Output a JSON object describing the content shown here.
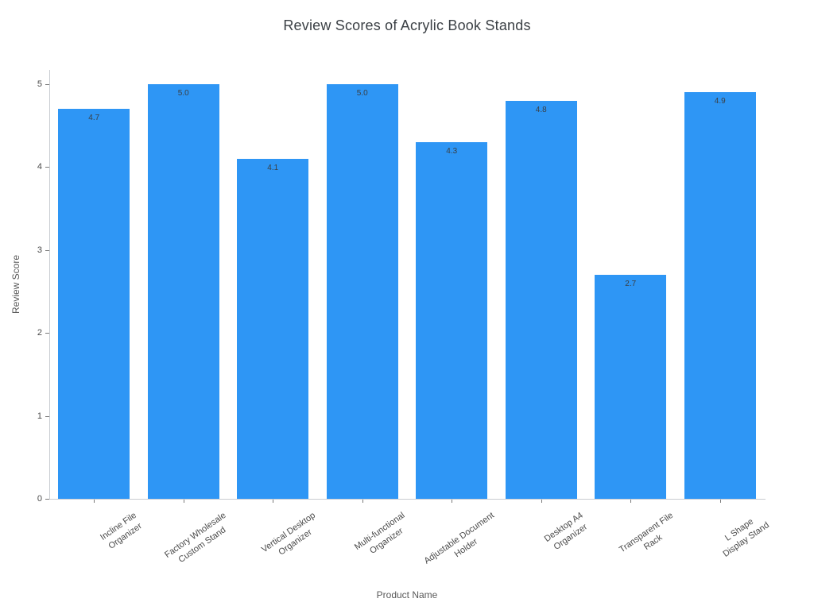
{
  "chart_data": {
    "type": "bar",
    "title": "Review Scores of Acrylic Book Stands",
    "xlabel": "Product Name",
    "ylabel": "Review Score",
    "categories": [
      [
        "Incline File",
        "Organizer"
      ],
      [
        "Factory Wholesale",
        "Custom Stand"
      ],
      [
        "Vertical Desktop",
        "Organizer"
      ],
      [
        "Multi-functional",
        "Organizer"
      ],
      [
        "Adjustable Document",
        "Holder"
      ],
      [
        "Desktop A4",
        "Organizer"
      ],
      [
        "Transparent File",
        "Rack"
      ],
      [
        "L Shape",
        "Display Stand"
      ]
    ],
    "values": [
      4.7,
      5.0,
      4.1,
      5.0,
      4.3,
      4.8,
      2.7,
      4.9
    ],
    "value_labels": [
      "4.7",
      "5.0",
      "4.1",
      "5.0",
      "4.3",
      "4.8",
      "2.7",
      "4.9"
    ],
    "ylim": [
      0,
      5
    ],
    "yticks": [
      0,
      1,
      2,
      3,
      4,
      5
    ],
    "bar_color": "#2E96F5",
    "grid": false,
    "legend": null
  }
}
